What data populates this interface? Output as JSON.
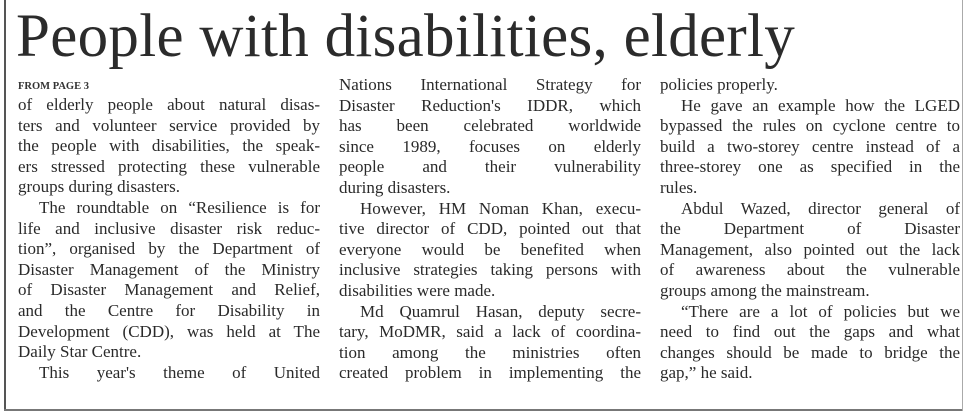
{
  "headline": "People with disabilities, elderly",
  "kicker": "FROM PAGE 3",
  "columns": [
    [
      {
        "indent": false,
        "lines": [
          "of elderly people about natural disas-",
          "ters and volunteer service provided by",
          "the people with disabilities, the speak-",
          "ers stressed protecting these vulnerable",
          "groups during disasters."
        ]
      },
      {
        "indent": true,
        "lines": [
          "The roundtable on “Resilience is for",
          "life and inclusive disaster risk reduc-",
          "tion”, organised by the Department of",
          "Disaster Management of the Ministry",
          "of Disaster Management and Relief,",
          "and the Centre for Disability in",
          "Development (CDD), was held at The",
          "Daily Star Centre."
        ]
      },
      {
        "indent": true,
        "continues": true,
        "lines": [
          "This year's theme of United"
        ]
      }
    ],
    [
      {
        "indent": false,
        "lines": [
          "Nations International Strategy for",
          "Disaster Reduction's IDDR, which",
          "has been celebrated worldwide",
          "since 1989, focuses on elderly",
          "people and their vulnerability",
          "during disasters."
        ]
      },
      {
        "indent": true,
        "lines": [
          "However, HM Noman Khan, execu-",
          "tive director of CDD, pointed out that",
          "everyone would be benefited when",
          "inclusive strategies taking persons with",
          "disabilities were made."
        ]
      },
      {
        "indent": true,
        "continues": true,
        "lines": [
          "Md Quamrul Hasan, deputy secre-",
          "tary, MoDMR, said a lack of coordina-",
          "tion among the ministries often",
          "created problem in implementing the"
        ]
      }
    ],
    [
      {
        "indent": false,
        "lines": [
          "policies properly."
        ]
      },
      {
        "indent": true,
        "lines": [
          "He gave an example how the LGED",
          "bypassed the rules on cyclone centre to",
          "build a two-storey centre instead of a",
          "three-storey one as specified in the",
          "rules."
        ]
      },
      {
        "indent": true,
        "lines": [
          "Abdul Wazed, director general of",
          "the Department of Disaster",
          "Management, also pointed out the lack",
          "of awareness about the vulnerable",
          "groups among the mainstream."
        ]
      },
      {
        "indent": true,
        "lines": [
          "“There are a lot of policies but we",
          "need to find out the gaps and what",
          "changes should be made to bridge the",
          "gap,” he said."
        ]
      }
    ]
  ]
}
